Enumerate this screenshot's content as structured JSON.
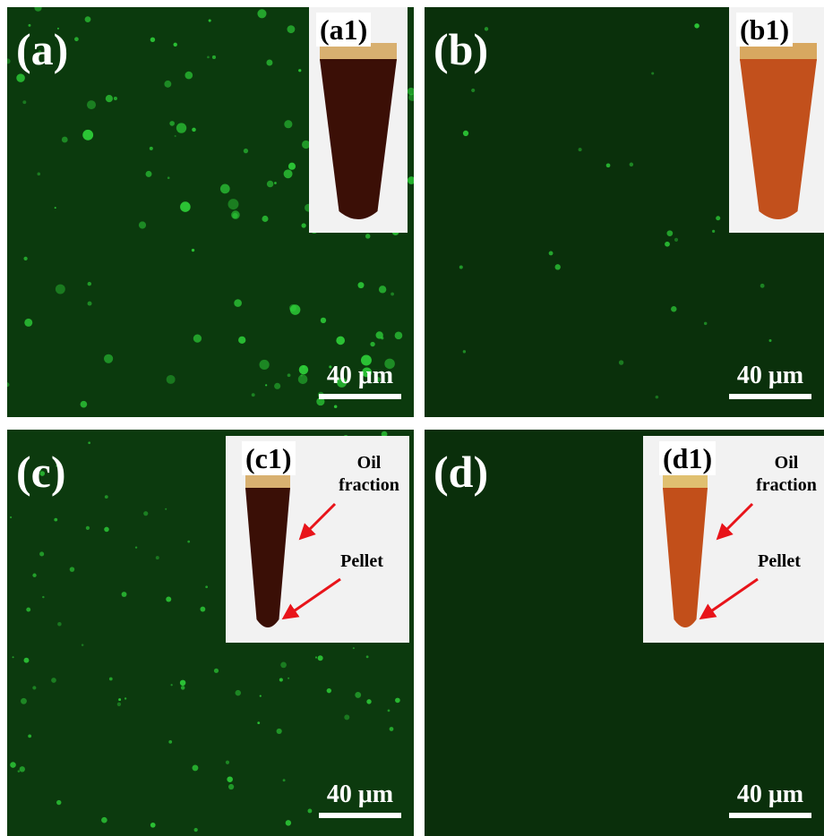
{
  "panels": [
    {
      "label": "(a)",
      "inset": {
        "label": "(a1)"
      },
      "scale_bar": "40 μm"
    },
    {
      "label": "(b)",
      "inset": {
        "label": "(b1)"
      },
      "scale_bar": "40 μm"
    },
    {
      "label": "(c)",
      "inset": {
        "label": "(c1)",
        "annotations": [
          "Oil fraction",
          "Pellet"
        ]
      },
      "scale_bar": "40 μm"
    },
    {
      "label": "(d)",
      "inset": {
        "label": "(d1)",
        "annotations": [
          "Oil fraction",
          "Pellet"
        ]
      },
      "scale_bar": "40 μm"
    }
  ]
}
